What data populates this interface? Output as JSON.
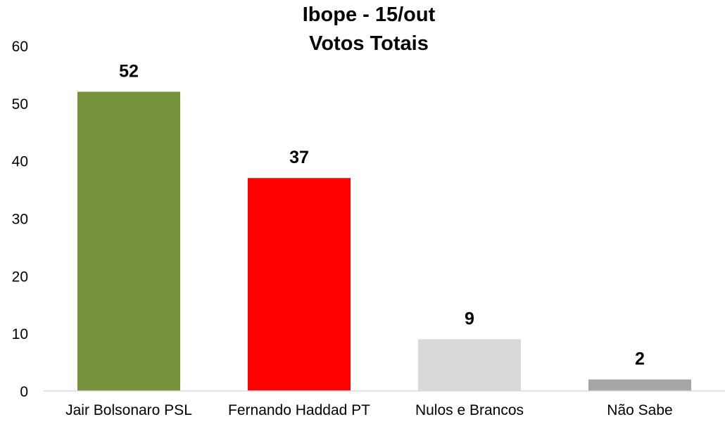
{
  "chart_data": {
    "type": "bar",
    "title": "Ibope - 15/out",
    "subtitle": "Votos Totais",
    "categories": [
      "Jair Bolsonaro PSL",
      "Fernando Haddad PT",
      "Nulos e Brancos",
      "Não Sabe"
    ],
    "values": [
      52,
      37,
      9,
      2
    ],
    "data_labels": [
      "52",
      "37",
      "9",
      "2"
    ],
    "colors": [
      "#76923c",
      "#ff0000",
      "#d9d9d9",
      "#a6a6a6"
    ],
    "ylim": [
      0,
      60
    ],
    "yticks": [
      0,
      10,
      20,
      30,
      40,
      50,
      60
    ],
    "xlabel": "",
    "ylabel": "",
    "grid": false,
    "legend": "none"
  }
}
